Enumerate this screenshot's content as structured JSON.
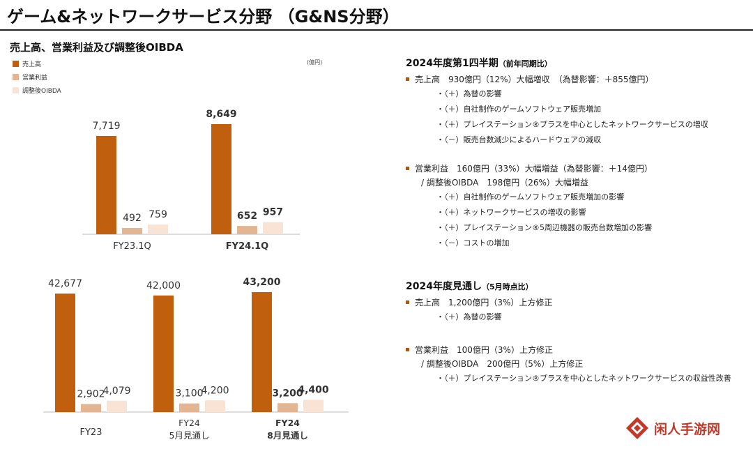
{
  "page": {
    "title": "ゲーム&ネットワークサービス分野 （G&NS分野）",
    "chart_title": "売上高、営業利益及び調整後OIBDA",
    "unit": "(億円)"
  },
  "colors": {
    "sales": "#c0600f",
    "op_income": "#e4b592",
    "oibda": "#f8e3d4"
  },
  "legend": [
    "売上高",
    "営業利益",
    "調整後OIBDA"
  ],
  "chart_data": [
    {
      "type": "bar",
      "categories": [
        "FY23.1Q",
        "FY24.1Q"
      ],
      "category_lines": [
        [
          "FY23.1Q"
        ],
        [
          "FY24.1Q"
        ]
      ],
      "bold_categories": [
        false,
        true
      ],
      "series": [
        {
          "name": "売上高",
          "values": [
            7719,
            8649
          ]
        },
        {
          "name": "営業利益",
          "values": [
            492,
            652
          ]
        },
        {
          "name": "調整後OIBDA",
          "values": [
            759,
            957
          ]
        }
      ],
      "value_labels": [
        [
          "7,719",
          "492",
          "759"
        ],
        [
          "8,649",
          "652",
          "957"
        ]
      ],
      "ylim": [
        0,
        8649
      ]
    },
    {
      "type": "bar",
      "categories": [
        "FY23",
        "FY24 5月見通し",
        "FY24 8月見通し"
      ],
      "category_lines": [
        [
          "FY23"
        ],
        [
          "FY24",
          "5月見通し"
        ],
        [
          "FY24",
          "8月見通し"
        ]
      ],
      "bold_categories": [
        false,
        false,
        true
      ],
      "series": [
        {
          "name": "売上高",
          "values": [
            42677,
            42000,
            43200
          ]
        },
        {
          "name": "営業利益",
          "values": [
            2902,
            3100,
            3200
          ]
        },
        {
          "name": "調整後OIBDA",
          "values": [
            4079,
            4200,
            4400
          ]
        }
      ],
      "value_labels": [
        [
          "42,677",
          "2,902",
          "4,079"
        ],
        [
          "42,000",
          "3,100",
          "4,200"
        ],
        [
          "43,200",
          "3,200",
          "4,400"
        ]
      ],
      "ylim": [
        0,
        43200
      ]
    }
  ],
  "right": {
    "q1_heading": "2024年度第1四半期",
    "q1_heading_sub": "（前年同期比）",
    "q1_sales": "売上高　930億円（12%）大幅増収　（為替影響：＋855億円）",
    "q1_sales_items": [
      "・（＋）為替の影響",
      "・（＋）自社制作のゲームソフトウェア販売増加",
      "・（＋）プレイステーション®プラスを中心としたネットワークサービスの増収",
      "・（－）販売台数減少によるハードウェアの減収"
    ],
    "q1_op": "営業利益　160億円（33%）大幅増益（為替影響：＋14億円）",
    "q1_oibda": "/ 調整後OIBDA　198億円（26%）大幅増益",
    "q1_op_items": [
      "・（＋）自社制作のゲームソフトウェア販売増加の影響",
      "・（＋）ネットワークサービスの増収の影響",
      "・（＋）プレイステーション®5周辺機器の販売台数増加の影響",
      "・（－）コストの増加"
    ],
    "fy_heading": "2024年度見通し",
    "fy_heading_sub": "（5月時点比）",
    "fy_sales": "売上高　1,200億円（3%）上方修正",
    "fy_sales_items": [
      "・（＋）為替の影響"
    ],
    "fy_op": "営業利益　100億円（3%）上方修正",
    "fy_oibda": "/ 調整後OIBDA　200億円（5%）上方修正",
    "fy_op_items": [
      "・（＋）プレイステーション®プラスを中心としたネットワークサービスの収益性改善"
    ]
  },
  "watermark": {
    "text": "闲人手游网",
    "icon": "diamond-logo-icon"
  }
}
